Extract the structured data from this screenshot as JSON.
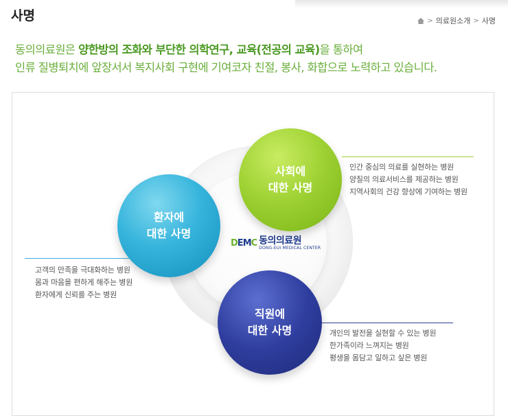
{
  "page": {
    "title": "사명"
  },
  "breadcrumb": {
    "home_icon": "home-icon",
    "items": [
      "의료원소개",
      "사명"
    ]
  },
  "intro": {
    "line1_prefix": "동의의료원은 ",
    "line1_emphasis": "양한방의 조화와 부단한 의학연구, 교육(전공의 교육)",
    "line1_suffix": "을 통하여",
    "line2": "인류 질병퇴치에 앞장서서 복지사회 구현에 기여코자 친절, 봉사, 화합으로 노력하고 있습니다."
  },
  "logo": {
    "mark_letters": [
      "D",
      "E",
      "M",
      "C"
    ],
    "name_ko": "동의의료원",
    "name_en": "DONG-EUI MEDICAL CENTER"
  },
  "missions": {
    "patient": {
      "line1": "환자에",
      "line2": "대한 사명",
      "desc": [
        "고객의 만족을 극대화하는 병원",
        "몸과 마음을 편하게 해주는 병원",
        "환자에게 신뢰를 주는 병원"
      ],
      "color": "#2aa9d4"
    },
    "society": {
      "line1": "사회에",
      "line2": "대한 사명",
      "desc": [
        "인간 중심의 의료를 실현하는 병원",
        "양질의 의료서비스를 제공하는 병원",
        "지역사회의 건강 향상에 기여하는 병원"
      ],
      "color": "#8fc626"
    },
    "staff": {
      "line1": "직원에",
      "line2": "대한 사명",
      "desc": [
        "개인의 발전을 실현할 수 있는 병원",
        "한가족이라 느껴지는 병원",
        "평생을 몸담고 일하고 싶은 병원"
      ],
      "color": "#2b3991"
    }
  },
  "colors": {
    "intro_text": "#6aae3b",
    "intro_emphasis": "#4c9a24"
  }
}
